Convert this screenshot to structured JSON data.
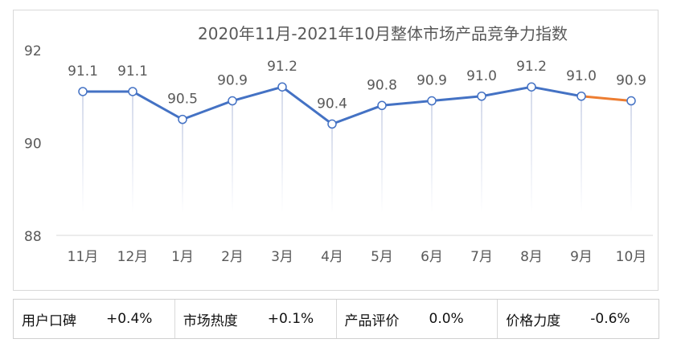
{
  "chart_data": {
    "type": "line",
    "title": "2020年11月-2021年10月整体市场产品竞争力指数",
    "categories": [
      "11月",
      "12月",
      "1月",
      "2月",
      "3月",
      "4月",
      "5月",
      "6月",
      "7月",
      "8月",
      "9月",
      "10月"
    ],
    "values": [
      91.1,
      91.1,
      90.5,
      90.9,
      91.2,
      90.4,
      90.8,
      90.9,
      91.0,
      91.2,
      91.0,
      90.9
    ],
    "data_labels": [
      "91.1",
      "91.1",
      "90.5",
      "90.9",
      "91.2",
      "90.4",
      "90.8",
      "90.9",
      "91.0",
      "91.2",
      "91.0",
      "90.9"
    ],
    "ylim": [
      88,
      92
    ],
    "yticks": [
      "88",
      "90",
      "92"
    ],
    "grid": false,
    "colors": {
      "line": "#4472c4",
      "last_segment": "#ed7d31"
    }
  },
  "metrics": [
    {
      "label": "用户口碑",
      "value": "+0.4%"
    },
    {
      "label": "市场热度",
      "value": "+0.1%"
    },
    {
      "label": "产品评价",
      "value": "0.0%"
    },
    {
      "label": "价格力度",
      "value": "-0.6%"
    }
  ]
}
